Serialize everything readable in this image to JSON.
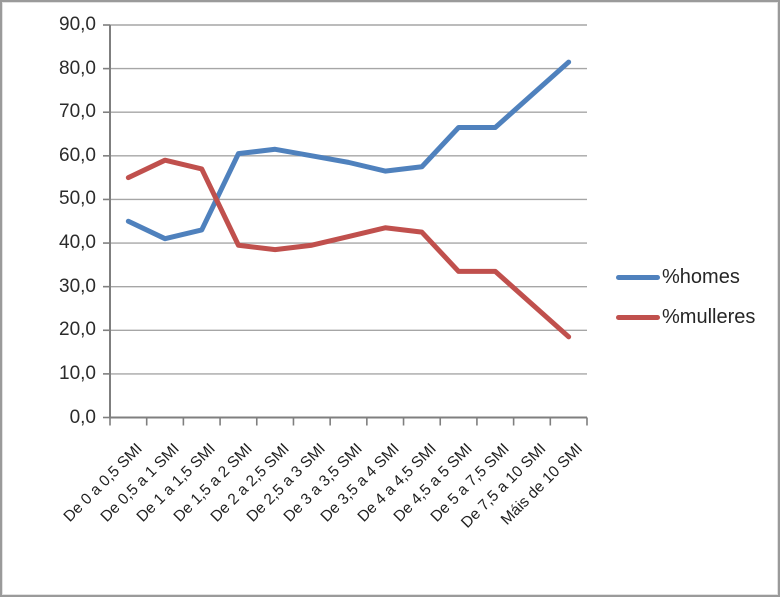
{
  "chart_data": {
    "type": "line",
    "categories": [
      "De 0 a 0,5 SMI",
      "De 0,5 a 1 SMI",
      "De 1 a 1,5 SMI",
      "De 1,5 a 2 SMI",
      "De 2 a 2,5 SMI",
      "De 2,5 a 3 SMI",
      "De 3 a 3,5 SMI",
      "De 3,5 a 4 SMI",
      "De 4 a 4,5 SMI",
      "De 4,5 a 5 SMI",
      "De 5 a 7,5 SMI",
      "De 7,5 a 10 SMI",
      "Máis de 10 SMI"
    ],
    "series": [
      {
        "name": "%homes",
        "color": "#4F81BD",
        "values": [
          45.0,
          41.0,
          43.0,
          60.5,
          61.5,
          60.0,
          58.5,
          56.5,
          57.5,
          66.5,
          66.5,
          74.0,
          81.5
        ]
      },
      {
        "name": "%mulleres",
        "color": "#C0504D",
        "values": [
          55.0,
          59.0,
          57.0,
          39.5,
          38.5,
          39.5,
          41.5,
          43.5,
          42.5,
          33.5,
          33.5,
          26.0,
          18.5
        ]
      }
    ],
    "ylim": [
      0,
      90
    ],
    "ytick_step": 10,
    "ytick_labels": [
      "0,0",
      "10,0",
      "20,0",
      "30,0",
      "40,0",
      "50,0",
      "60,0",
      "70,0",
      "80,0",
      "90,0"
    ],
    "grid": true,
    "legend_position": "right",
    "xlabel": "",
    "ylabel": ""
  },
  "style": {
    "grid_color": "#a6a6a6",
    "axis_color": "#7f7f7f",
    "text_color": "#2b2b2b",
    "border_color": "#9a9a9a",
    "background": "#ffffff",
    "line_width": 5
  }
}
